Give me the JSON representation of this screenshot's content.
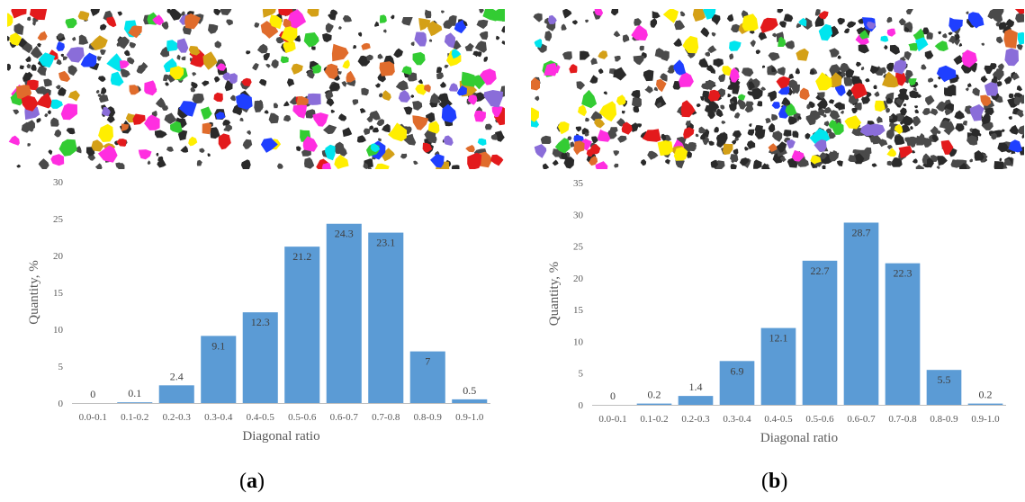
{
  "figure": {
    "panels": [
      {
        "letter": "a"
      },
      {
        "letter": "b"
      }
    ]
  },
  "chart_data": [
    {
      "type": "bar",
      "categories": [
        "0.0-0.1",
        "0.1-0.2",
        "0.2-0.3",
        "0.3-0.4",
        "0.4-0.5",
        "0.5-0.6",
        "0.6-0.7",
        "0.7-0.8",
        "0.8-0.9",
        "0.9-1.0"
      ],
      "values": [
        0,
        0.1,
        2.4,
        9.1,
        12.3,
        21.2,
        24.3,
        23.1,
        7,
        0.5
      ],
      "data_labels": [
        "0",
        "0.1",
        "2.4",
        "9.1",
        "12.3",
        "21.2",
        "24.3",
        "23.1",
        "7",
        "0.5"
      ],
      "xlabel": "Diagonal ratio",
      "ylabel": "Quantity, %",
      "ylim": [
        0,
        30
      ],
      "yticks": [
        0,
        5,
        10,
        15,
        20,
        25,
        30
      ],
      "grid": false,
      "bar_color": "#5b9bd5"
    },
    {
      "type": "bar",
      "categories": [
        "0.0-0.1",
        "0.1-0.2",
        "0.2-0.3",
        "0.3-0.4",
        "0.4-0.5",
        "0.5-0.6",
        "0.6-0.7",
        "0.7-0.8",
        "0.8-0.9",
        "0.9-1.0"
      ],
      "values": [
        0,
        0.2,
        1.4,
        6.9,
        12.1,
        22.7,
        28.7,
        22.3,
        5.5,
        0.2
      ],
      "data_labels": [
        "0",
        "0.2",
        "1.4",
        "6.9",
        "12.1",
        "22.7",
        "28.7",
        "22.3",
        "5.5",
        "0.2"
      ],
      "xlabel": "Diagonal ratio",
      "ylabel": "Quantity, %",
      "ylim": [
        0,
        35
      ],
      "yticks": [
        0,
        5,
        10,
        15,
        20,
        25,
        30,
        35
      ],
      "grid": false,
      "bar_color": "#5b9bd5"
    }
  ],
  "particle_palette": [
    "#e31a1c",
    "#1f3fff",
    "#33cc33",
    "#ff2ee0",
    "#00e5ee",
    "#ffee00",
    "#8a6dd9",
    "#e06c2c",
    "#d4a017",
    "#2a2a2a",
    "#3b3b3b"
  ]
}
